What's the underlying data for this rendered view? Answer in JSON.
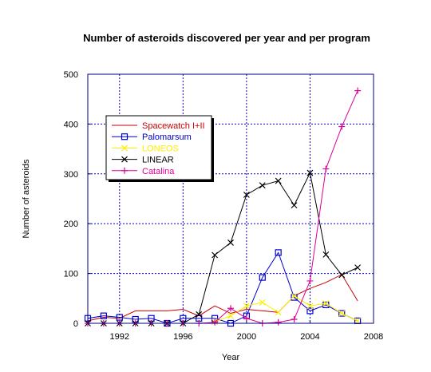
{
  "chart_data": {
    "type": "line",
    "title": "Number of asteroids discovered per year and per program",
    "xlabel": "Year",
    "ylabel": "Number of asteroids",
    "xlim": [
      1990,
      2008
    ],
    "ylim": [
      0,
      500
    ],
    "xticks": [
      1992,
      1996,
      2000,
      2004,
      2008
    ],
    "yticks": [
      0,
      100,
      200,
      300,
      400,
      500
    ],
    "grid": true,
    "legend_position": "upper-left",
    "series": [
      {
        "name": "Spacewatch I+II",
        "color": "#cc0000",
        "marker": "none",
        "x": [
          1990,
          1991,
          1992,
          1993,
          1994,
          1995,
          1996,
          1997,
          1998,
          1999,
          2000,
          2001,
          2002,
          2003,
          2004,
          2005,
          2006,
          2007
        ],
        "y": [
          5,
          12,
          10,
          25,
          25,
          25,
          28,
          15,
          35,
          20,
          28,
          25,
          22,
          55,
          70,
          82,
          98,
          45
        ]
      },
      {
        "name": "Palomarsum",
        "color": "#0000cc",
        "marker": "square",
        "x": [
          1990,
          1991,
          1992,
          1993,
          1994,
          1995,
          1996,
          1997,
          1998,
          1999,
          2000,
          2001,
          2002,
          2003,
          2004,
          2005,
          2006,
          2007
        ],
        "y": [
          10,
          15,
          12,
          8,
          10,
          0,
          10,
          10,
          10,
          0,
          15,
          92,
          142,
          52,
          25,
          37,
          20,
          5
        ]
      },
      {
        "name": "LONEOS",
        "color": "#ffee00",
        "marker": "x",
        "x": [
          1998,
          1999,
          2000,
          2001,
          2002,
          2003,
          2004,
          2005,
          2006,
          2007
        ],
        "y": [
          3,
          15,
          35,
          42,
          22,
          55,
          35,
          40,
          20,
          5
        ]
      },
      {
        "name": "LINEAR",
        "color": "#000000",
        "marker": "x",
        "x": [
          1990,
          1991,
          1992,
          1993,
          1994,
          1995,
          1996,
          1997,
          1998,
          1999,
          2000,
          2001,
          2002,
          2003,
          2004,
          2005,
          2006,
          2007
        ],
        "y": [
          0,
          0,
          0,
          0,
          0,
          0,
          0,
          18,
          137,
          162,
          258,
          277,
          286,
          237,
          302,
          138,
          97,
          112
        ]
      },
      {
        "name": "Catalina",
        "color": "#dd0099",
        "marker": "plus",
        "x": [
          1990,
          1991,
          1992,
          1993,
          1994,
          1995,
          1996,
          1997,
          1998,
          1999,
          2000,
          2001,
          2002,
          2003,
          2004,
          2005,
          2006,
          2007
        ],
        "y": [
          0,
          0,
          0,
          0,
          0,
          0,
          0,
          0,
          2,
          30,
          10,
          0,
          2,
          8,
          85,
          310,
          395,
          467
        ]
      }
    ]
  }
}
